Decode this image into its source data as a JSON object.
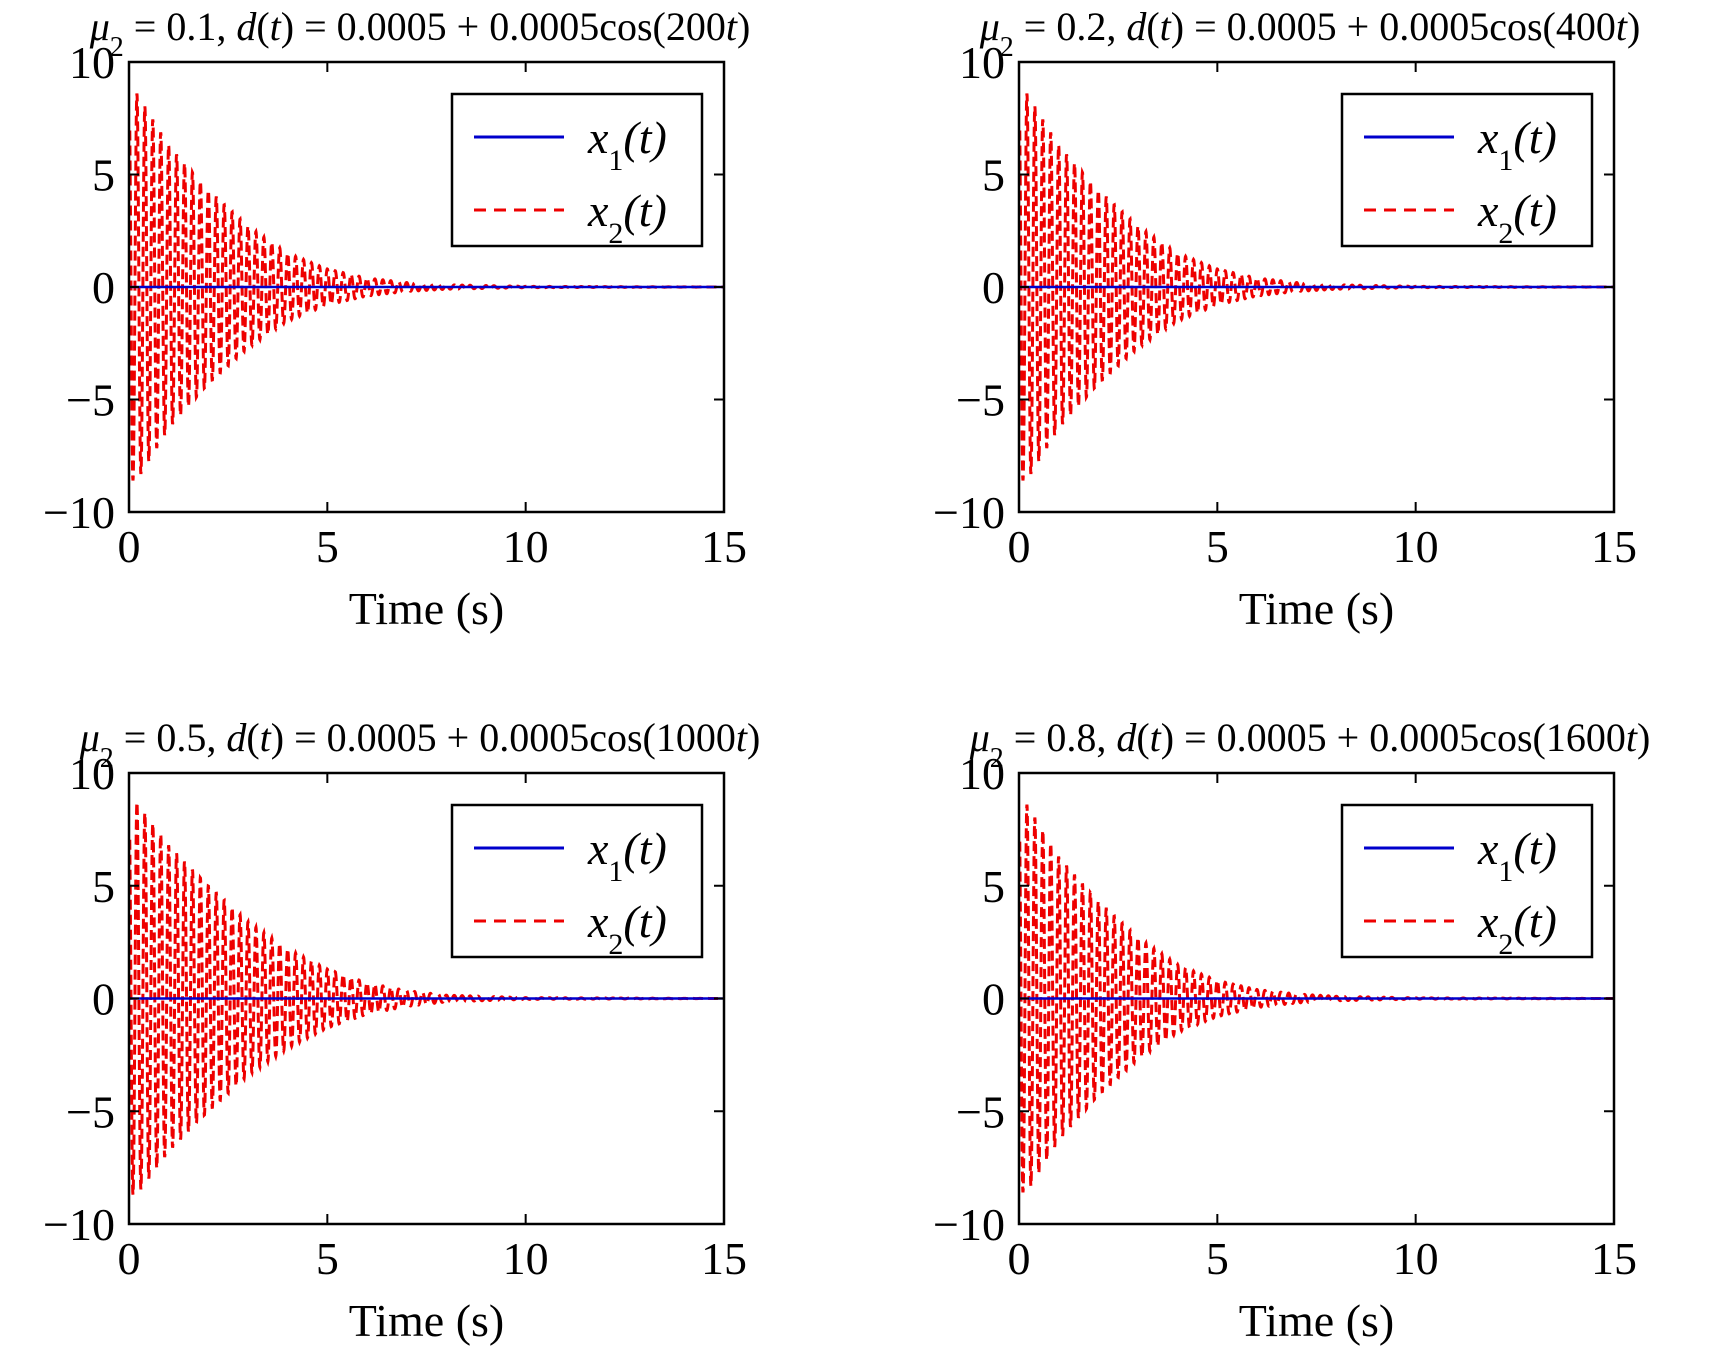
{
  "chart_data": [
    {
      "type": "line",
      "title_parts": [
        "μ",
        "2",
        " = 0.1, ",
        "d",
        "(",
        "t",
        ") = 0.0005 + 0.0005cos(200",
        "t",
        ")"
      ],
      "xlabel": "Time (s)",
      "ylabel": "",
      "xlim": [
        0,
        15
      ],
      "ylim": [
        -10,
        10
      ],
      "xticks": [
        "0",
        "5",
        "10",
        "15"
      ],
      "yticks": [
        "10",
        "5",
        "0",
        "−5",
        "−10"
      ],
      "legend_position": "top-right",
      "series": [
        {
          "name": "x1(t)",
          "style": "solid",
          "color": "#0000cc",
          "x": [
            0,
            15
          ],
          "y": [
            0,
            0
          ]
        },
        {
          "name": "x2(t)",
          "style": "dashed",
          "color": "#ee0000",
          "amplitude_peak": 8.6,
          "envelope_x": [
            0.2,
            1,
            2,
            3,
            4,
            5,
            6,
            7,
            8,
            10,
            15
          ],
          "envelope_y": [
            8.6,
            6.3,
            4.3,
            2.7,
            1.5,
            0.8,
            0.4,
            0.2,
            0.1,
            0.03,
            0
          ]
        }
      ],
      "legend": [
        {
          "var": "x",
          "sub": "1",
          "arg": "(t)"
        },
        {
          "var": "x",
          "sub": "2",
          "arg": "(t)"
        }
      ]
    },
    {
      "type": "line",
      "title_parts": [
        "μ",
        "2",
        " = 0.2, ",
        "d",
        "(",
        "t",
        ") = 0.0005 + 0.0005cos(400",
        "t",
        ")"
      ],
      "xlabel": "Time (s)",
      "ylabel": "",
      "xlim": [
        0,
        15
      ],
      "ylim": [
        -10,
        10
      ],
      "xticks": [
        "0",
        "5",
        "10",
        "15"
      ],
      "yticks": [
        "10",
        "5",
        "0",
        "−5",
        "−10"
      ],
      "legend_position": "top-right",
      "series": [
        {
          "name": "x1(t)",
          "style": "solid",
          "color": "#0000cc",
          "x": [
            0,
            15
          ],
          "y": [
            0,
            0
          ]
        },
        {
          "name": "x2(t)",
          "style": "dashed",
          "color": "#ee0000",
          "amplitude_peak": 8.6,
          "envelope_x": [
            0.2,
            1,
            2,
            3,
            4,
            5,
            6,
            7,
            8,
            10,
            15
          ],
          "envelope_y": [
            8.6,
            6.3,
            4.3,
            2.7,
            1.5,
            0.8,
            0.4,
            0.2,
            0.1,
            0.03,
            0
          ]
        }
      ],
      "legend": [
        {
          "var": "x",
          "sub": "1",
          "arg": "(t)"
        },
        {
          "var": "x",
          "sub": "2",
          "arg": "(t)"
        }
      ]
    },
    {
      "type": "line",
      "title_parts": [
        "μ",
        "2",
        " = 0.5, ",
        "d",
        "(",
        "t",
        ") = 0.0005 + 0.0005cos(1000",
        "t",
        ")"
      ],
      "xlabel": "Time (s)",
      "ylabel": "",
      "xlim": [
        0,
        15
      ],
      "ylim": [
        -10,
        10
      ],
      "xticks": [
        "0",
        "5",
        "10",
        "15"
      ],
      "yticks": [
        "10",
        "5",
        "0",
        "−5",
        "−10"
      ],
      "legend_position": "top-right",
      "series": [
        {
          "name": "x1(t)",
          "style": "solid",
          "color": "#0000cc",
          "x": [
            0,
            15
          ],
          "y": [
            0,
            0
          ]
        },
        {
          "name": "x2(t)",
          "style": "dashed",
          "color": "#ee0000",
          "amplitude_peak": 8.7,
          "envelope_x": [
            0.2,
            1,
            2,
            3,
            4,
            5,
            6,
            7,
            8,
            10,
            15
          ],
          "envelope_y": [
            8.7,
            6.8,
            5.0,
            3.4,
            2.2,
            1.3,
            0.7,
            0.35,
            0.15,
            0.04,
            0
          ]
        }
      ],
      "legend": [
        {
          "var": "x",
          "sub": "1",
          "arg": "(t)"
        },
        {
          "var": "x",
          "sub": "2",
          "arg": "(t)"
        }
      ]
    },
    {
      "type": "line",
      "title_parts": [
        "μ",
        "2",
        " = 0.8, ",
        "d",
        "(",
        "t",
        ") = 0.0005 + 0.0005cos(1600",
        "t",
        ")"
      ],
      "xlabel": "Time (s)",
      "ylabel": "",
      "xlim": [
        0,
        15
      ],
      "ylim": [
        -10,
        10
      ],
      "xticks": [
        "0",
        "5",
        "10",
        "15"
      ],
      "yticks": [
        "10",
        "5",
        "0",
        "−5",
        "−10"
      ],
      "legend_position": "top-right",
      "series": [
        {
          "name": "x1(t)",
          "style": "solid",
          "color": "#0000cc",
          "x": [
            0,
            15
          ],
          "y": [
            0,
            0
          ]
        },
        {
          "name": "x2(t)",
          "style": "dashed",
          "color": "#ee0000",
          "amplitude_peak": 8.6,
          "envelope_x": [
            0.2,
            1,
            2,
            3,
            4,
            5,
            6,
            7,
            8,
            10,
            15
          ],
          "envelope_y": [
            8.6,
            6.3,
            4.3,
            2.7,
            1.5,
            0.8,
            0.4,
            0.2,
            0.1,
            0.03,
            0
          ]
        }
      ],
      "legend": [
        {
          "var": "x",
          "sub": "1",
          "arg": "(t)"
        },
        {
          "var": "x",
          "sub": "2",
          "arg": "(t)"
        }
      ]
    }
  ]
}
